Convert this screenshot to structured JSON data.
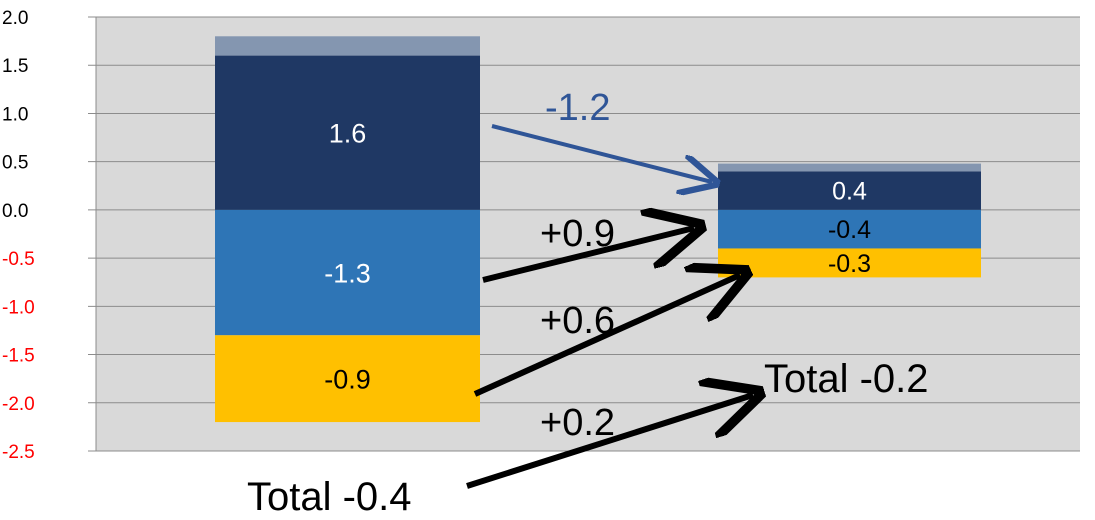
{
  "chart_data": {
    "type": "bar",
    "stacked": true,
    "ylim": [
      -2.5,
      2.0
    ],
    "grid": true,
    "y_ticks": [
      "2.0",
      "1.5",
      "1.0",
      "0.5",
      "0.0",
      "-0.5",
      "-1.0",
      "-1.5",
      "-2.0",
      "-2.5"
    ],
    "colors": {
      "plot_bg": "#d9d9d9",
      "gridline": "#8c8c8c",
      "positive_tick": "#000000",
      "negative_tick": "#ff0000",
      "top_cap": "#8496b0",
      "dark_navy": "#1f3864",
      "mid_blue": "#2e75b6",
      "yellow": "#ffc000",
      "blue_arrow": "#2f5597",
      "black_arrow": "#000000"
    },
    "bars": [
      {
        "segments": [
          {
            "color": "top_cap",
            "value": 0.2,
            "label": ""
          },
          {
            "color": "dark_navy",
            "value": 1.6,
            "label": "1.6"
          },
          {
            "color": "mid_blue",
            "value": -1.3,
            "label": "-1.3"
          },
          {
            "color": "yellow",
            "value": -0.9,
            "label": "-0.9"
          }
        ],
        "total_label": "Total -0.4"
      },
      {
        "segments": [
          {
            "color": "top_cap",
            "value": 0.08,
            "label": ""
          },
          {
            "color": "dark_navy",
            "value": 0.4,
            "label": "0.4"
          },
          {
            "color": "mid_blue",
            "value": -0.4,
            "label": "-0.4"
          },
          {
            "color": "yellow",
            "value": -0.3,
            "label": "-0.3"
          }
        ],
        "total_label": "Total -0.2"
      }
    ],
    "change_labels": [
      {
        "text": "-1.2",
        "color": "blue_arrow"
      },
      {
        "text": "+0.9",
        "color": "black_arrow"
      },
      {
        "text": "+0.6",
        "color": "black_arrow"
      },
      {
        "text": "+0.2",
        "color": "black_arrow"
      }
    ]
  }
}
